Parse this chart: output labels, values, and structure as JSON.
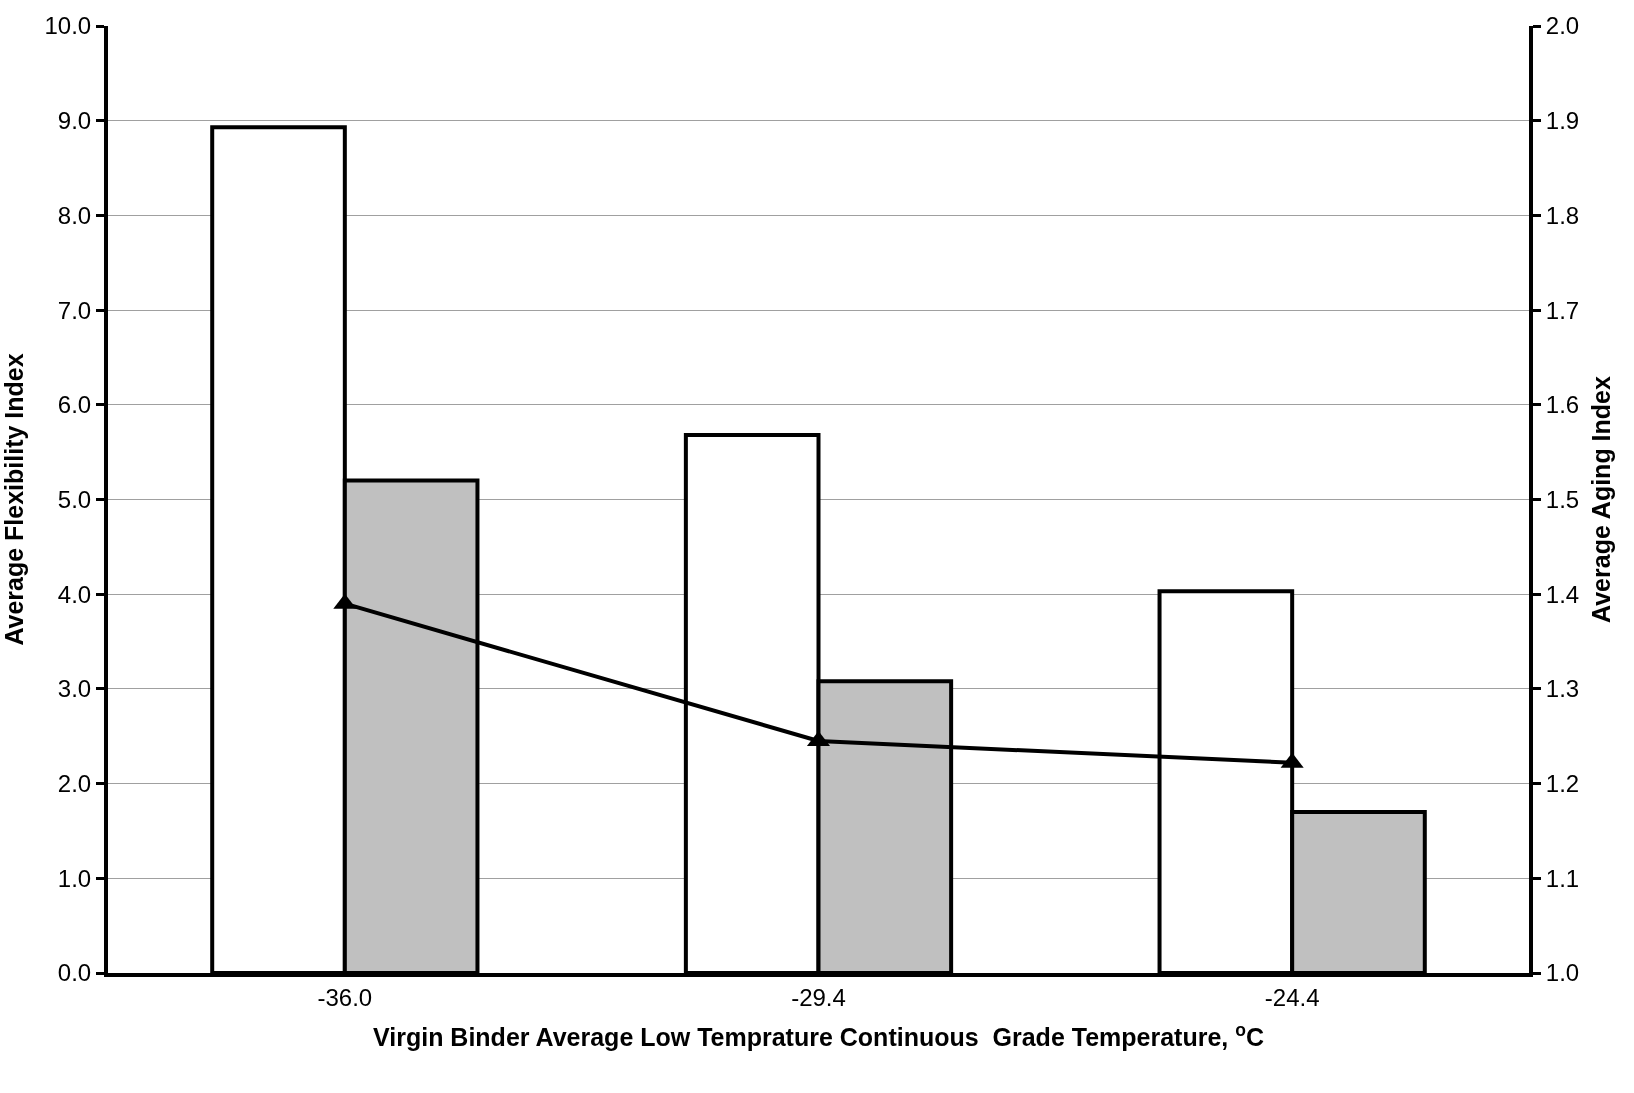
{
  "chart_data": {
    "type": "bar",
    "xlabel": "Virgin Binder Average Low Temprature Continuous  Grade Temperature, $^{o}$C",
    "ylabel": "Average Flexibility Index",
    "y2label": "Average Aging Index",
    "categories": [
      "-36.0",
      "-29.4",
      "-24.4"
    ],
    "series": [
      {
        "color": "#ffffff",
        "values": [
          8.93,
          5.68,
          4.03
        ]
      },
      {
        "color": "#c0c0c0",
        "values": [
          5.2,
          3.08,
          1.7
        ]
      },
      {
        "type": "line",
        "axis": "y2",
        "color": "#000000",
        "marker": "triangle",
        "line_style": "solid",
        "values": [
          1.39,
          1.245,
          1.222
        ]
      }
    ],
    "ylim": [
      0,
      10
    ],
    "yticks": [
      {
        "value": 0,
        "label": "0.0"
      },
      {
        "value": 1,
        "label": "1.0"
      },
      {
        "value": 2,
        "label": "2.0"
      },
      {
        "value": 3,
        "label": "3.0"
      },
      {
        "value": 4,
        "label": "4.0"
      },
      {
        "value": 5,
        "label": "5.0"
      },
      {
        "value": 6,
        "label": "6.0"
      },
      {
        "value": 7,
        "label": "7.0"
      },
      {
        "value": 8,
        "label": "8.0"
      },
      {
        "value": 9,
        "label": "9.0"
      },
      {
        "value": 10,
        "label": "10.0"
      }
    ],
    "y2lim": [
      1.0,
      2.0
    ],
    "y2ticks": [
      {
        "value": 1.0,
        "label": "1.0"
      },
      {
        "value": 1.1,
        "label": "1.1"
      },
      {
        "value": 1.2,
        "label": "1.2"
      },
      {
        "value": 1.3,
        "label": "1.3"
      },
      {
        "value": 1.4,
        "label": "1.4"
      },
      {
        "value": 1.5,
        "label": "1.5"
      },
      {
        "value": 1.6,
        "label": "1.6"
      },
      {
        "value": 1.7,
        "label": "1.7"
      },
      {
        "value": 1.8,
        "label": "1.8"
      },
      {
        "value": 1.9,
        "label": "1.9"
      },
      {
        "value": 2.0,
        "label": "2.0"
      }
    ],
    "grid": "y"
  }
}
